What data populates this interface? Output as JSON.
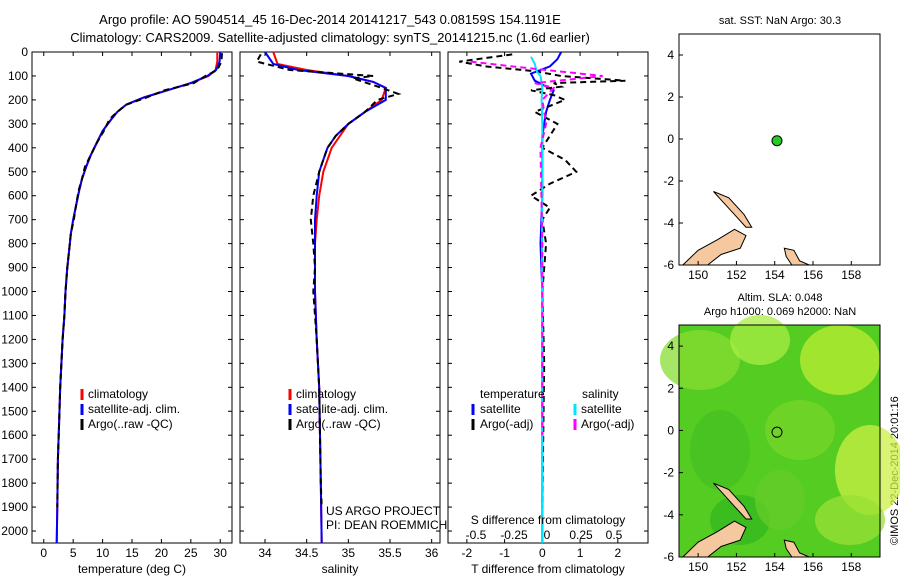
{
  "header": {
    "line1": "Argo profile: AO 5904514_45 16-Dec-2014 20141217_543 0.08159S 154.1191E",
    "line2": "Climatology: CARS2009. Satellite-adjusted climatology: synTS_20141215.nc (1.6d earlier)"
  },
  "colors": {
    "climatology": "#ff0000",
    "satellite": "#0000ff",
    "argo": "#000000",
    "salinity_satellite": "#00e5ff",
    "salinity_argo": "#ff00ff",
    "land": "#f5c8a0",
    "argo_marker": "#22cc22"
  },
  "depth_axis": {
    "range": [
      0,
      2050
    ],
    "ticks": [
      "0",
      "100",
      "200",
      "300",
      "400",
      "500",
      "600",
      "700",
      "800",
      "900",
      "1000",
      "1100",
      "1200",
      "1300",
      "1400",
      "1500",
      "1600",
      "1700",
      "1800",
      "1900",
      "2000"
    ]
  },
  "chart_data": [
    {
      "type": "line",
      "id": "temperature",
      "xlabel": "temperature (deg C)",
      "xlim": [
        -2,
        32
      ],
      "ylim": [
        0,
        2050
      ],
      "xticks": [
        "0",
        "5",
        "10",
        "15",
        "20",
        "25",
        "30"
      ],
      "legend": [
        "climatology",
        "satellite-adj. clim.",
        "Argo(..raw -QC)"
      ],
      "series": [
        {
          "name": "climatology",
          "x": [
            29.5,
            29.5,
            29.2,
            28.0,
            25.0,
            21.0,
            17.0,
            14.0,
            12.5,
            11.5,
            10.0,
            9.0,
            8.0,
            7.2,
            6.5,
            6.0,
            5.5,
            5.0,
            4.6,
            4.3,
            4.0,
            3.7,
            3.5,
            3.2,
            3.0,
            2.8,
            2.6,
            2.4,
            2.3,
            2.2
          ],
          "y": [
            0,
            40,
            75,
            100,
            130,
            160,
            190,
            220,
            250,
            280,
            330,
            380,
            430,
            480,
            530,
            580,
            640,
            700,
            760,
            830,
            900,
            1000,
            1100,
            1200,
            1300,
            1400,
            1550,
            1700,
            1900,
            2050
          ]
        },
        {
          "name": "satellite-adj. clim.",
          "x": [
            30.0,
            29.9,
            29.3,
            27.8,
            25.0,
            21.0,
            17.0,
            14.0,
            12.5,
            11.5,
            10.0,
            9.0,
            8.0,
            7.2,
            6.5,
            6.0,
            5.5,
            5.0,
            4.6,
            4.3,
            4.0,
            3.7,
            3.5,
            3.2,
            3.0,
            2.8,
            2.6,
            2.4,
            2.3,
            2.2
          ],
          "y": [
            0,
            40,
            75,
            100,
            130,
            160,
            190,
            220,
            250,
            280,
            330,
            380,
            430,
            480,
            530,
            580,
            640,
            700,
            760,
            830,
            900,
            1000,
            1100,
            1200,
            1300,
            1400,
            1550,
            1700,
            1900,
            2050
          ]
        },
        {
          "name": "Argo(..raw -QC)",
          "x": [
            30.3,
            30.2,
            29.5,
            27.5,
            25.5,
            20.5,
            17.5,
            14.0,
            12.5,
            11.2,
            10.2,
            9.0,
            8.0,
            7.0,
            6.5,
            5.9,
            5.5,
            5.1,
            4.6,
            4.3,
            4.0,
            3.7,
            3.5,
            3.2,
            3.0,
            2.8,
            2.6,
            2.4,
            2.3
          ],
          "y": [
            5,
            40,
            75,
            100,
            130,
            160,
            190,
            220,
            250,
            280,
            330,
            380,
            430,
            480,
            530,
            580,
            640,
            700,
            760,
            830,
            900,
            1000,
            1100,
            1200,
            1300,
            1400,
            1550,
            1700,
            1900
          ]
        }
      ]
    },
    {
      "type": "line",
      "id": "salinity",
      "xlabel": "salinity",
      "xlim": [
        33.7,
        36.1
      ],
      "ylim": [
        0,
        2050
      ],
      "xticks": [
        "34",
        "34.5",
        "35",
        "35.5",
        "36"
      ],
      "legend": [
        "climatology",
        "satellite-adj. clim.",
        "Argo(..raw -QC)"
      ],
      "annotation": [
        "US ARGO PROJECT",
        "PI: DEAN ROEMMICH"
      ],
      "series": [
        {
          "name": "climatology",
          "x": [
            34.1,
            34.15,
            34.5,
            35.0,
            35.3,
            35.45,
            35.4,
            35.2,
            35.0,
            34.9,
            34.8,
            34.75,
            34.7,
            34.65,
            34.62,
            34.6,
            34.6,
            34.6,
            34.62,
            34.65,
            34.66,
            34.67,
            34.68
          ],
          "y": [
            0,
            50,
            75,
            100,
            125,
            150,
            200,
            250,
            300,
            350,
            400,
            450,
            500,
            600,
            700,
            800,
            900,
            1000,
            1200,
            1400,
            1600,
            1800,
            2050
          ]
        },
        {
          "name": "satellite-adj. clim.",
          "x": [
            34.0,
            34.1,
            34.4,
            35.0,
            35.3,
            35.45,
            35.45,
            35.2,
            35.0,
            34.85,
            34.75,
            34.7,
            34.65,
            34.62,
            34.6,
            34.6,
            34.6,
            34.6,
            34.62,
            34.65,
            34.66,
            34.67,
            34.68
          ],
          "y": [
            0,
            50,
            75,
            100,
            125,
            150,
            200,
            250,
            300,
            350,
            400,
            450,
            500,
            600,
            700,
            800,
            900,
            1000,
            1200,
            1400,
            1600,
            1800,
            2050
          ]
        },
        {
          "name": "Argo(..raw -QC)",
          "x": [
            33.95,
            33.9,
            34.3,
            34.9,
            35.3,
            35.05,
            35.4,
            35.6,
            35.35,
            35.2,
            35.0,
            34.85,
            34.75,
            34.7,
            34.65,
            34.58,
            34.55,
            34.58,
            34.6,
            34.58,
            34.62,
            34.65,
            34.66,
            34.67,
            34.68
          ],
          "y": [
            10,
            40,
            75,
            90,
            100,
            110,
            150,
            175,
            200,
            250,
            300,
            350,
            400,
            450,
            500,
            600,
            700,
            800,
            900,
            1000,
            1200,
            1400,
            1600,
            1800,
            1900
          ]
        }
      ]
    },
    {
      "type": "line",
      "id": "difference",
      "xlabel": "T difference from climatology",
      "xlabel2": "S difference from climatology",
      "xlim": [
        -2.5,
        2.8
      ],
      "ylim": [
        0,
        2050
      ],
      "xticks": [
        "-2",
        "-1",
        "0",
        "1",
        "2"
      ],
      "xticks2": [
        "-0.5",
        "-0.25",
        "0",
        "0.25",
        "0.5"
      ],
      "legend": [
        "temperature",
        "satellite",
        "Argo(-adj)"
      ],
      "legend2": [
        "salinity",
        "satellite",
        "Argo(-adj)"
      ],
      "series": [
        {
          "name": "satellite",
          "x": [
            0.5,
            0.4,
            0.2,
            -0.3,
            -0.2,
            0.3,
            0.2,
            0.1,
            0.05,
            0.0,
            0.0,
            0.0,
            0.0,
            -0.05,
            0.0,
            0.0,
            0.0
          ],
          "y": [
            0,
            30,
            60,
            90,
            120,
            160,
            200,
            250,
            300,
            350,
            400,
            500,
            600,
            800,
            1000,
            1500,
            2050
          ]
        },
        {
          "name": "Argo(-adj)",
          "x": [
            -0.8,
            -2.2,
            -1.5,
            -0.2,
            0.5,
            2.2,
            0.3,
            0.5,
            -0.3,
            0.3,
            0.6,
            -0.2,
            0.4,
            0.2,
            0.0,
            0.6,
            0.9,
            0.2,
            -0.3,
            0.2,
            0.0,
            0.1,
            0.05,
            0.0,
            0.05,
            0.0
          ],
          "y": [
            10,
            40,
            60,
            80,
            100,
            120,
            130,
            145,
            160,
            180,
            200,
            250,
            300,
            350,
            400,
            450,
            500,
            550,
            600,
            650,
            700,
            800,
            900,
            1000,
            1300,
            1900
          ]
        },
        {
          "name": "salinity satellite",
          "x": [
            -0.3,
            -0.2,
            -0.15,
            -0.05,
            0.0,
            -0.02,
            0.0,
            0.0,
            -0.01,
            0.0,
            0.0,
            0.0
          ],
          "y": [
            20,
            50,
            80,
            100,
            150,
            200,
            300,
            500,
            800,
            1200,
            1600,
            2050
          ]
        },
        {
          "name": "salinity Argo(-adj)",
          "x": [
            -1.9,
            -0.8,
            0.1,
            1.6,
            -0.2,
            0.3,
            0.0,
            0.1,
            -0.05,
            0.0,
            0.0,
            0.0
          ],
          "y": [
            40,
            60,
            75,
            100,
            130,
            150,
            200,
            300,
            400,
            800,
            1200,
            1600
          ]
        }
      ]
    },
    {
      "type": "scatter",
      "id": "sst-map",
      "title": "sat. SST: NaN Argo: 30.3",
      "xlim": [
        149,
        159.5
      ],
      "ylim": [
        -6,
        5
      ],
      "xticks": [
        "150",
        "152",
        "154",
        "156",
        "158"
      ],
      "yticks": [
        "4",
        "2",
        "0",
        "-2",
        "-4",
        "-6"
      ],
      "points": [
        {
          "x": 154.1191,
          "y": -0.08159
        }
      ]
    },
    {
      "type": "heatmap",
      "id": "sla-map",
      "title": "Altim. SLA: 0.048",
      "subtitle": "Argo h1000: 0.069 h2000: NaN",
      "xlim": [
        149,
        159.5
      ],
      "ylim": [
        -6,
        5
      ],
      "xticks": [
        "150",
        "152",
        "154",
        "156",
        "158"
      ],
      "yticks": [
        "4",
        "2",
        "0",
        "-2",
        "-4",
        "-6"
      ],
      "points": [
        {
          "x": 154.1191,
          "y": -0.08159
        }
      ]
    }
  ],
  "footer": {
    "stamp": "©IMOS 22-Dec-2014 20:01:16"
  }
}
